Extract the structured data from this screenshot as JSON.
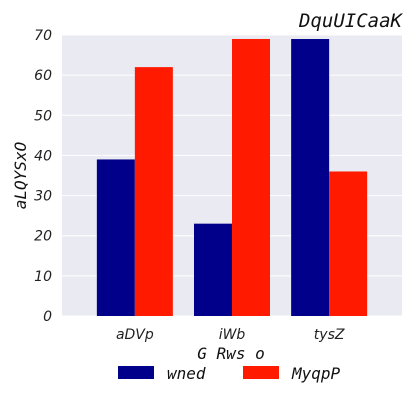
{
  "chart_data": {
    "type": "bar",
    "title": "DquUICaaK",
    "xlabel": "G Rws o",
    "ylabel": "aLQYSxO",
    "categories": [
      "aDVp",
      "iWb",
      "tysZ"
    ],
    "series": [
      {
        "name": "wned",
        "color": "#00008b",
        "values": [
          39,
          23,
          69
        ]
      },
      {
        "name": "MyqpP",
        "color": "#ff1a00",
        "values": [
          62,
          69,
          36
        ]
      }
    ],
    "ylim": [
      0,
      70
    ],
    "yticks": [
      0,
      10,
      20,
      30,
      40,
      50,
      60,
      70
    ],
    "grid": true,
    "legend_position": "bottom",
    "plot_background": "#eaeaf2"
  }
}
